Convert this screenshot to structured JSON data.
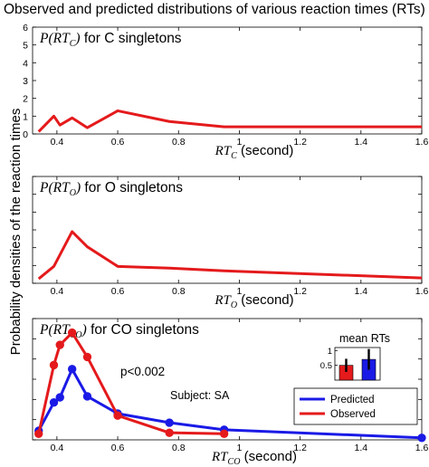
{
  "figure_title": "Observed and predicted distributions of various reaction times (RTs)",
  "shared_ylabel": "Probability densities of the reaction times",
  "chart_data": [
    {
      "type": "line",
      "panel_label_math": "P(RT",
      "panel_label_sub": "C",
      "panel_label_close": ")",
      "panel_label_text": " for C singletons",
      "xlabel_math": "RT",
      "xlabel_sub": "C",
      "xlabel_text": " (second)",
      "xlim": [
        0.32,
        1.6
      ],
      "ylim": [
        0,
        6
      ],
      "xticks": [
        0.4,
        0.6,
        0.8,
        1,
        1.2,
        1.4,
        1.6
      ],
      "xtick_labels": [
        "0.4",
        "0.6",
        "0.8",
        "1",
        "1.2",
        "1.4",
        "1.6"
      ],
      "yticks": [
        0,
        1,
        2,
        3,
        4,
        5,
        6
      ],
      "ytick_labels": [
        "0",
        "1",
        "2",
        "3",
        "4",
        "5",
        "6"
      ],
      "series": [
        {
          "color": "#e41a1c",
          "markers": false,
          "x": [
            0.34,
            0.39,
            0.41,
            0.45,
            0.5,
            0.6,
            0.77,
            0.95,
            1.6
          ],
          "y": [
            0.13,
            1.0,
            0.5,
            0.9,
            0.35,
            1.3,
            0.7,
            0.4,
            0.4
          ]
        }
      ]
    },
    {
      "type": "line",
      "panel_label_math": "P(RT",
      "panel_label_sub": "O",
      "panel_label_close": ")",
      "panel_label_text": " for O singletons",
      "xlabel_math": "RT",
      "xlabel_sub": "O",
      "xlabel_text": " (second)",
      "xlim": [
        0.32,
        1.6
      ],
      "ylim": [
        0,
        6
      ],
      "xticks": [
        0.4,
        0.6,
        0.8,
        1,
        1.2,
        1.4,
        1.6
      ],
      "xtick_labels": [
        "0.4",
        "0.6",
        "0.8",
        "1",
        "1.2",
        "1.4",
        "1.6"
      ],
      "yticks": [],
      "ytick_labels": [],
      "series": [
        {
          "color": "#e41a1c",
          "markers": false,
          "x": [
            0.34,
            0.39,
            0.45,
            0.5,
            0.6,
            0.77,
            0.95,
            1.6
          ],
          "y": [
            0.25,
            0.95,
            2.9,
            2.05,
            0.95,
            0.85,
            0.7,
            0.3
          ]
        }
      ]
    },
    {
      "type": "line",
      "panel_label_math": "P(RT",
      "panel_label_sub": "CO",
      "panel_label_close": ")",
      "panel_label_text": " for CO singletons",
      "xlabel_math": "RT",
      "xlabel_sub": "CO",
      "xlabel_text": " (second)",
      "xlim": [
        0.32,
        1.6
      ],
      "ylim": [
        0,
        6
      ],
      "xticks": [
        0.4,
        0.6,
        0.8,
        1,
        1.2,
        1.4,
        1.6
      ],
      "xtick_labels": [
        "0.4",
        "0.6",
        "0.8",
        "1",
        "1.2",
        "1.4",
        "1.6"
      ],
      "yticks": [],
      "ytick_labels": [],
      "annotations": [
        "p<0.002",
        "Subject: SA"
      ],
      "legend": {
        "placement": "right",
        "entries": [
          {
            "label": "Predicted",
            "color": "#1a1ae6"
          },
          {
            "label": "Observed",
            "color": "#e41a1c"
          }
        ]
      },
      "series": [
        {
          "name": "Predicted",
          "color": "#1a1ae6",
          "markers": true,
          "x": [
            0.34,
            0.39,
            0.41,
            0.45,
            0.5,
            0.6,
            0.77,
            0.95,
            1.6
          ],
          "y": [
            0.45,
            1.85,
            2.1,
            3.5,
            2.15,
            1.3,
            0.85,
            0.5,
            0.1
          ]
        },
        {
          "name": "Observed",
          "color": "#e41a1c",
          "markers": true,
          "x": [
            0.34,
            0.39,
            0.41,
            0.45,
            0.5,
            0.6,
            0.77,
            0.95
          ],
          "y": [
            0.3,
            3.7,
            4.7,
            5.3,
            4.1,
            1.2,
            0.35,
            0.3
          ]
        }
      ],
      "inset": {
        "title": "mean RTs",
        "type": "bar",
        "ylim": [
          0,
          1.1
        ],
        "yticks": [
          0.5,
          1
        ],
        "ytick_labels": [
          "0.5",
          "1"
        ],
        "bars": [
          {
            "color": "#e41a1c",
            "value": 0.5,
            "err": 0.22
          },
          {
            "color": "#1a1ae6",
            "value": 0.7,
            "err": 0.35
          }
        ]
      }
    }
  ]
}
